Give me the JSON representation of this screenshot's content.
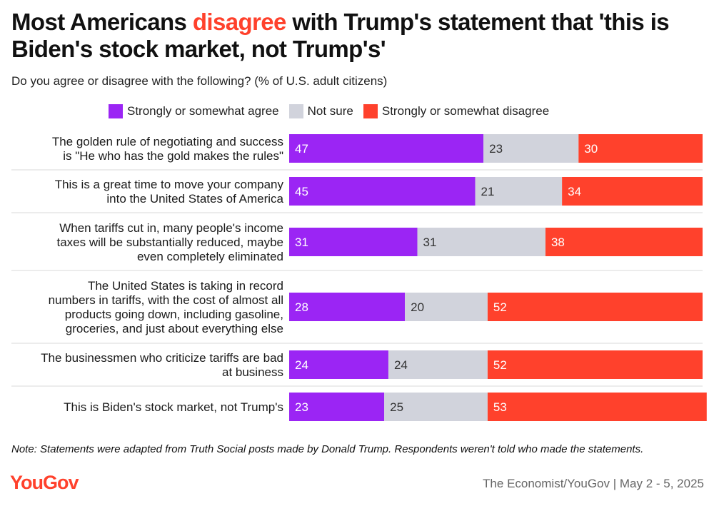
{
  "title": {
    "part1": "Most Americans ",
    "highlight": "disagree",
    "part2": " with Trump's statement that 'this is Biden's stock market, not Trump's'"
  },
  "subtitle": "Do you agree or disagree with the following? (% of U.S. adult citizens)",
  "legend": [
    {
      "label": "Strongly or somewhat agree",
      "color": "#9b25f4"
    },
    {
      "label": "Not sure",
      "color": "#d1d3dc"
    },
    {
      "label": "Strongly or somewhat disagree",
      "color": "#ff412c"
    }
  ],
  "chart_data": {
    "type": "bar",
    "orientation": "horizontal",
    "stacked": true,
    "xlim": [
      0,
      100
    ],
    "categories": [
      [
        "The golden rule of negotiating and success",
        "is \"He who has the gold makes the rules\""
      ],
      [
        "This is a great time to move your company",
        "into the United States of America"
      ],
      [
        "When tariffs cut in, many people's income",
        "taxes will be substantially reduced, maybe",
        "even completely eliminated"
      ],
      [
        "The United States is taking in record",
        "numbers in tariffs, with the cost of almost all",
        "products going down, including gasoline,",
        "groceries, and just about everything else"
      ],
      [
        "The businessmen who criticize tariffs are bad",
        "at business"
      ],
      [
        "This is Biden's stock market, not Trump's"
      ]
    ],
    "series": [
      {
        "name": "Strongly or somewhat agree",
        "color": "#9b25f4",
        "label_color": "#ffffff",
        "values": [
          47,
          45,
          31,
          28,
          24,
          23
        ]
      },
      {
        "name": "Not sure",
        "color": "#d1d3dc",
        "label_color": "#333333",
        "values": [
          23,
          21,
          31,
          20,
          24,
          25
        ]
      },
      {
        "name": "Strongly or somewhat disagree",
        "color": "#ff412c",
        "label_color": "#ffffff",
        "values": [
          30,
          34,
          38,
          52,
          52,
          53
        ]
      }
    ]
  },
  "note": "Note: Statements were adapted from Truth Social posts made by Donald Trump. Respondents weren't told who made the statements.",
  "logo": "YouGov",
  "source": "The Economist/YouGov | May 2 - 5, 2025"
}
